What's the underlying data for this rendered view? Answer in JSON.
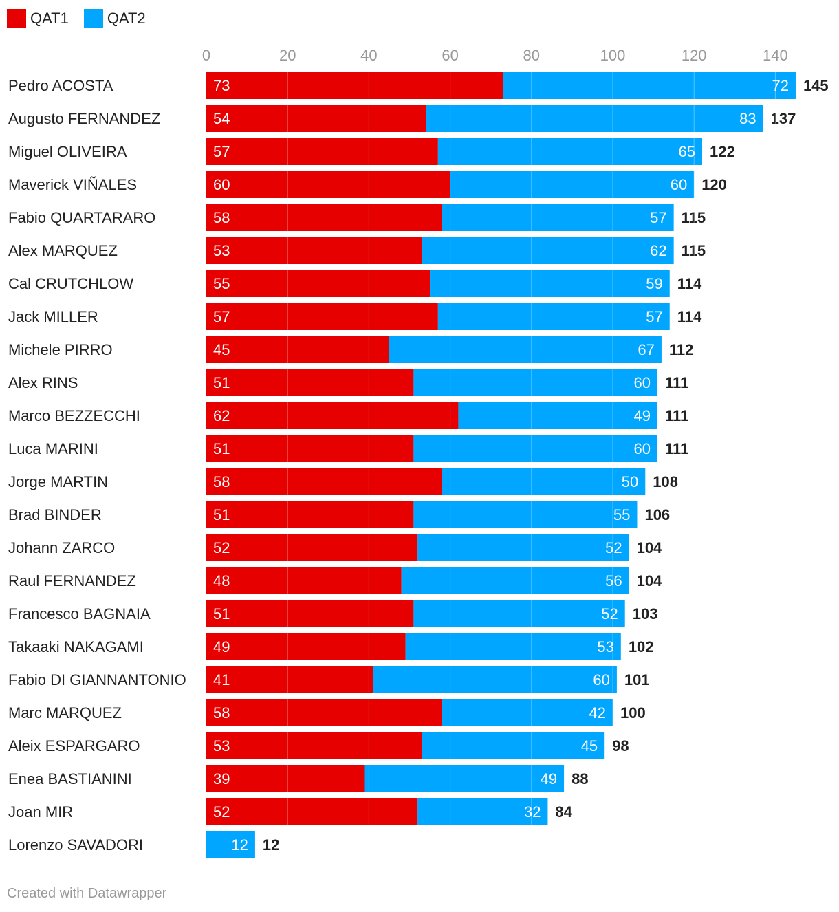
{
  "chart_data": {
    "type": "bar",
    "orientation": "horizontal",
    "stacked": true,
    "categories": [
      "Pedro ACOSTA",
      "Augusto FERNANDEZ",
      "Miguel OLIVEIRA",
      "Maverick VIÑALES",
      "Fabio QUARTARARO",
      "Alex MARQUEZ",
      "Cal CRUTCHLOW",
      "Jack MILLER",
      "Michele PIRRO",
      "Alex RINS",
      "Marco BEZZECCHI",
      "Luca MARINI",
      "Jorge MARTIN",
      "Brad BINDER",
      "Johann ZARCO",
      "Raul FERNANDEZ",
      "Francesco BAGNAIA",
      "Takaaki NAKAGAMI",
      "Fabio DI GIANNANTONIO",
      "Marc MARQUEZ",
      "Aleix ESPARGARO",
      "Enea BASTIANINI",
      "Joan MIR",
      "Lorenzo SAVADORI"
    ],
    "series": [
      {
        "name": "QAT1",
        "color": "#e60000",
        "values": [
          73,
          54,
          57,
          60,
          58,
          53,
          55,
          57,
          45,
          51,
          62,
          51,
          58,
          51,
          52,
          48,
          51,
          49,
          41,
          58,
          53,
          39,
          52,
          0
        ]
      },
      {
        "name": "QAT2",
        "color": "#00a6ff",
        "values": [
          72,
          83,
          65,
          60,
          57,
          62,
          59,
          57,
          67,
          60,
          49,
          60,
          50,
          55,
          52,
          56,
          52,
          53,
          60,
          42,
          45,
          49,
          32,
          12
        ]
      }
    ],
    "totals": [
      145,
      137,
      122,
      120,
      115,
      115,
      114,
      114,
      112,
      111,
      111,
      111,
      108,
      106,
      104,
      104,
      103,
      102,
      101,
      100,
      98,
      88,
      84,
      12
    ],
    "xlim": [
      0,
      145
    ],
    "xticks": [
      "0",
      "20",
      "40",
      "60",
      "80",
      "100",
      "120",
      "140"
    ],
    "grid": true,
    "legend_position": "top-left"
  },
  "footer": "Created with Datawrapper"
}
